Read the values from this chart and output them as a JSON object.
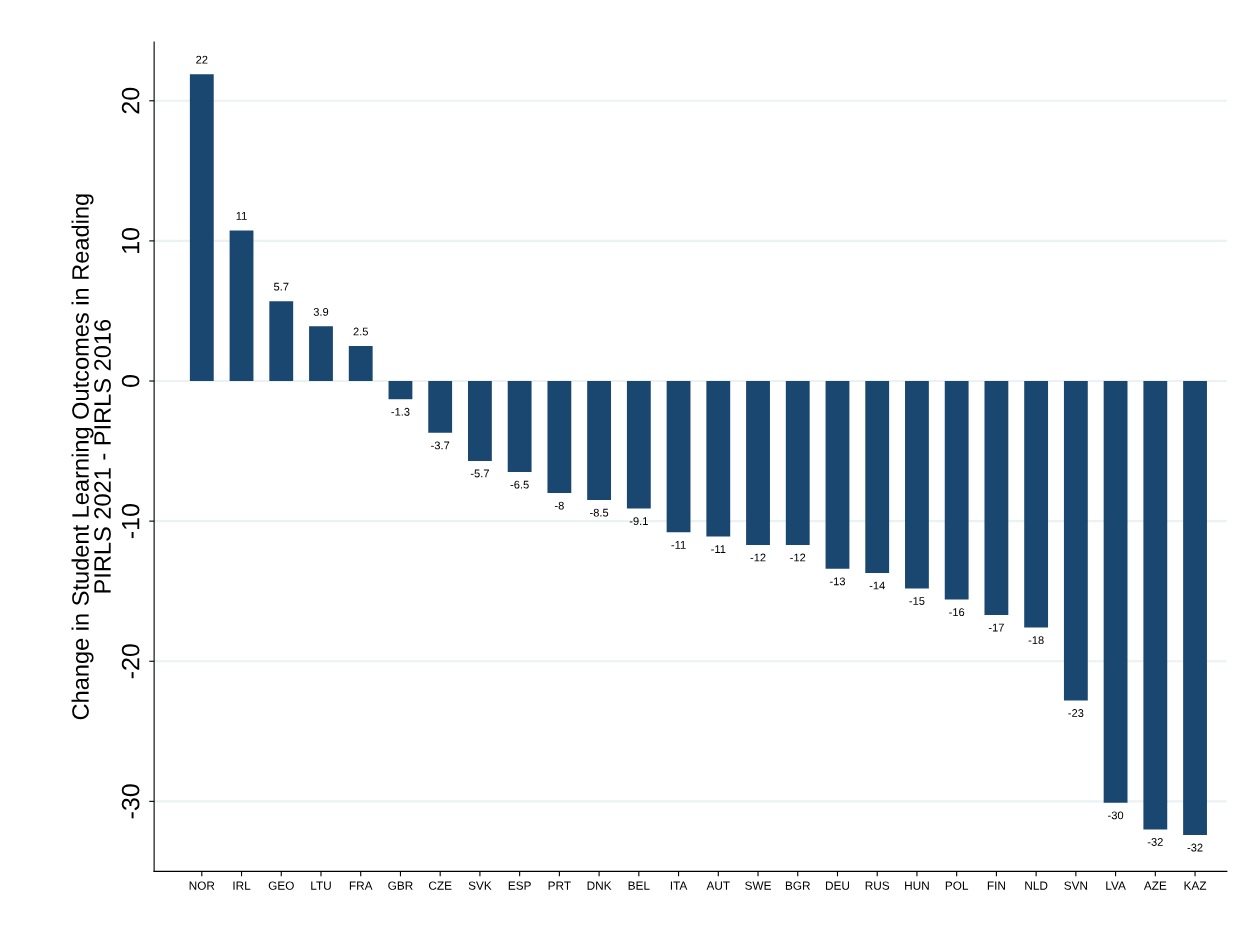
{
  "chart_data": {
    "type": "bar",
    "ylabel": "Change in Student Learning Outcomes in Reading\nPIRLS 2021 - PIRLS 2016",
    "categories": [
      "NOR",
      "IRL",
      "GEO",
      "LTU",
      "FRA",
      "GBR",
      "CZE",
      "SVK",
      "ESP",
      "PRT",
      "DNK",
      "BEL",
      "ITA",
      "AUT",
      "SWE",
      "BGR",
      "DEU",
      "RUS",
      "HUN",
      "POL",
      "FIN",
      "NLD",
      "SVN",
      "LVA",
      "AZE",
      "KAZ"
    ],
    "values": [
      21.9,
      10.75,
      5.7,
      3.9,
      2.5,
      -1.3,
      -3.7,
      -5.7,
      -6.5,
      -8.0,
      -8.5,
      -9.1,
      -10.8,
      -11.1,
      -11.7,
      -11.7,
      -13.4,
      -13.7,
      -14.8,
      -15.6,
      -16.7,
      -17.6,
      -22.8,
      -30.1,
      -32.0,
      -32.4
    ],
    "value_labels": [
      "22",
      "11",
      "5.7",
      "3.9",
      "2.5",
      "-1.3",
      "-3.7",
      "-5.7",
      "-6.5",
      "-8",
      "-8.5",
      "-9.1",
      "-11",
      "-11",
      "-12",
      "-12",
      "-13",
      "-14",
      "-15",
      "-16",
      "-17",
      "-18",
      "-23",
      "-30",
      "-32",
      "-32"
    ],
    "color": "#1a476f",
    "ylim": [
      -35,
      24.2
    ],
    "yticks": [
      -30,
      -20,
      -10,
      0,
      10,
      20
    ],
    "grid": "y"
  }
}
